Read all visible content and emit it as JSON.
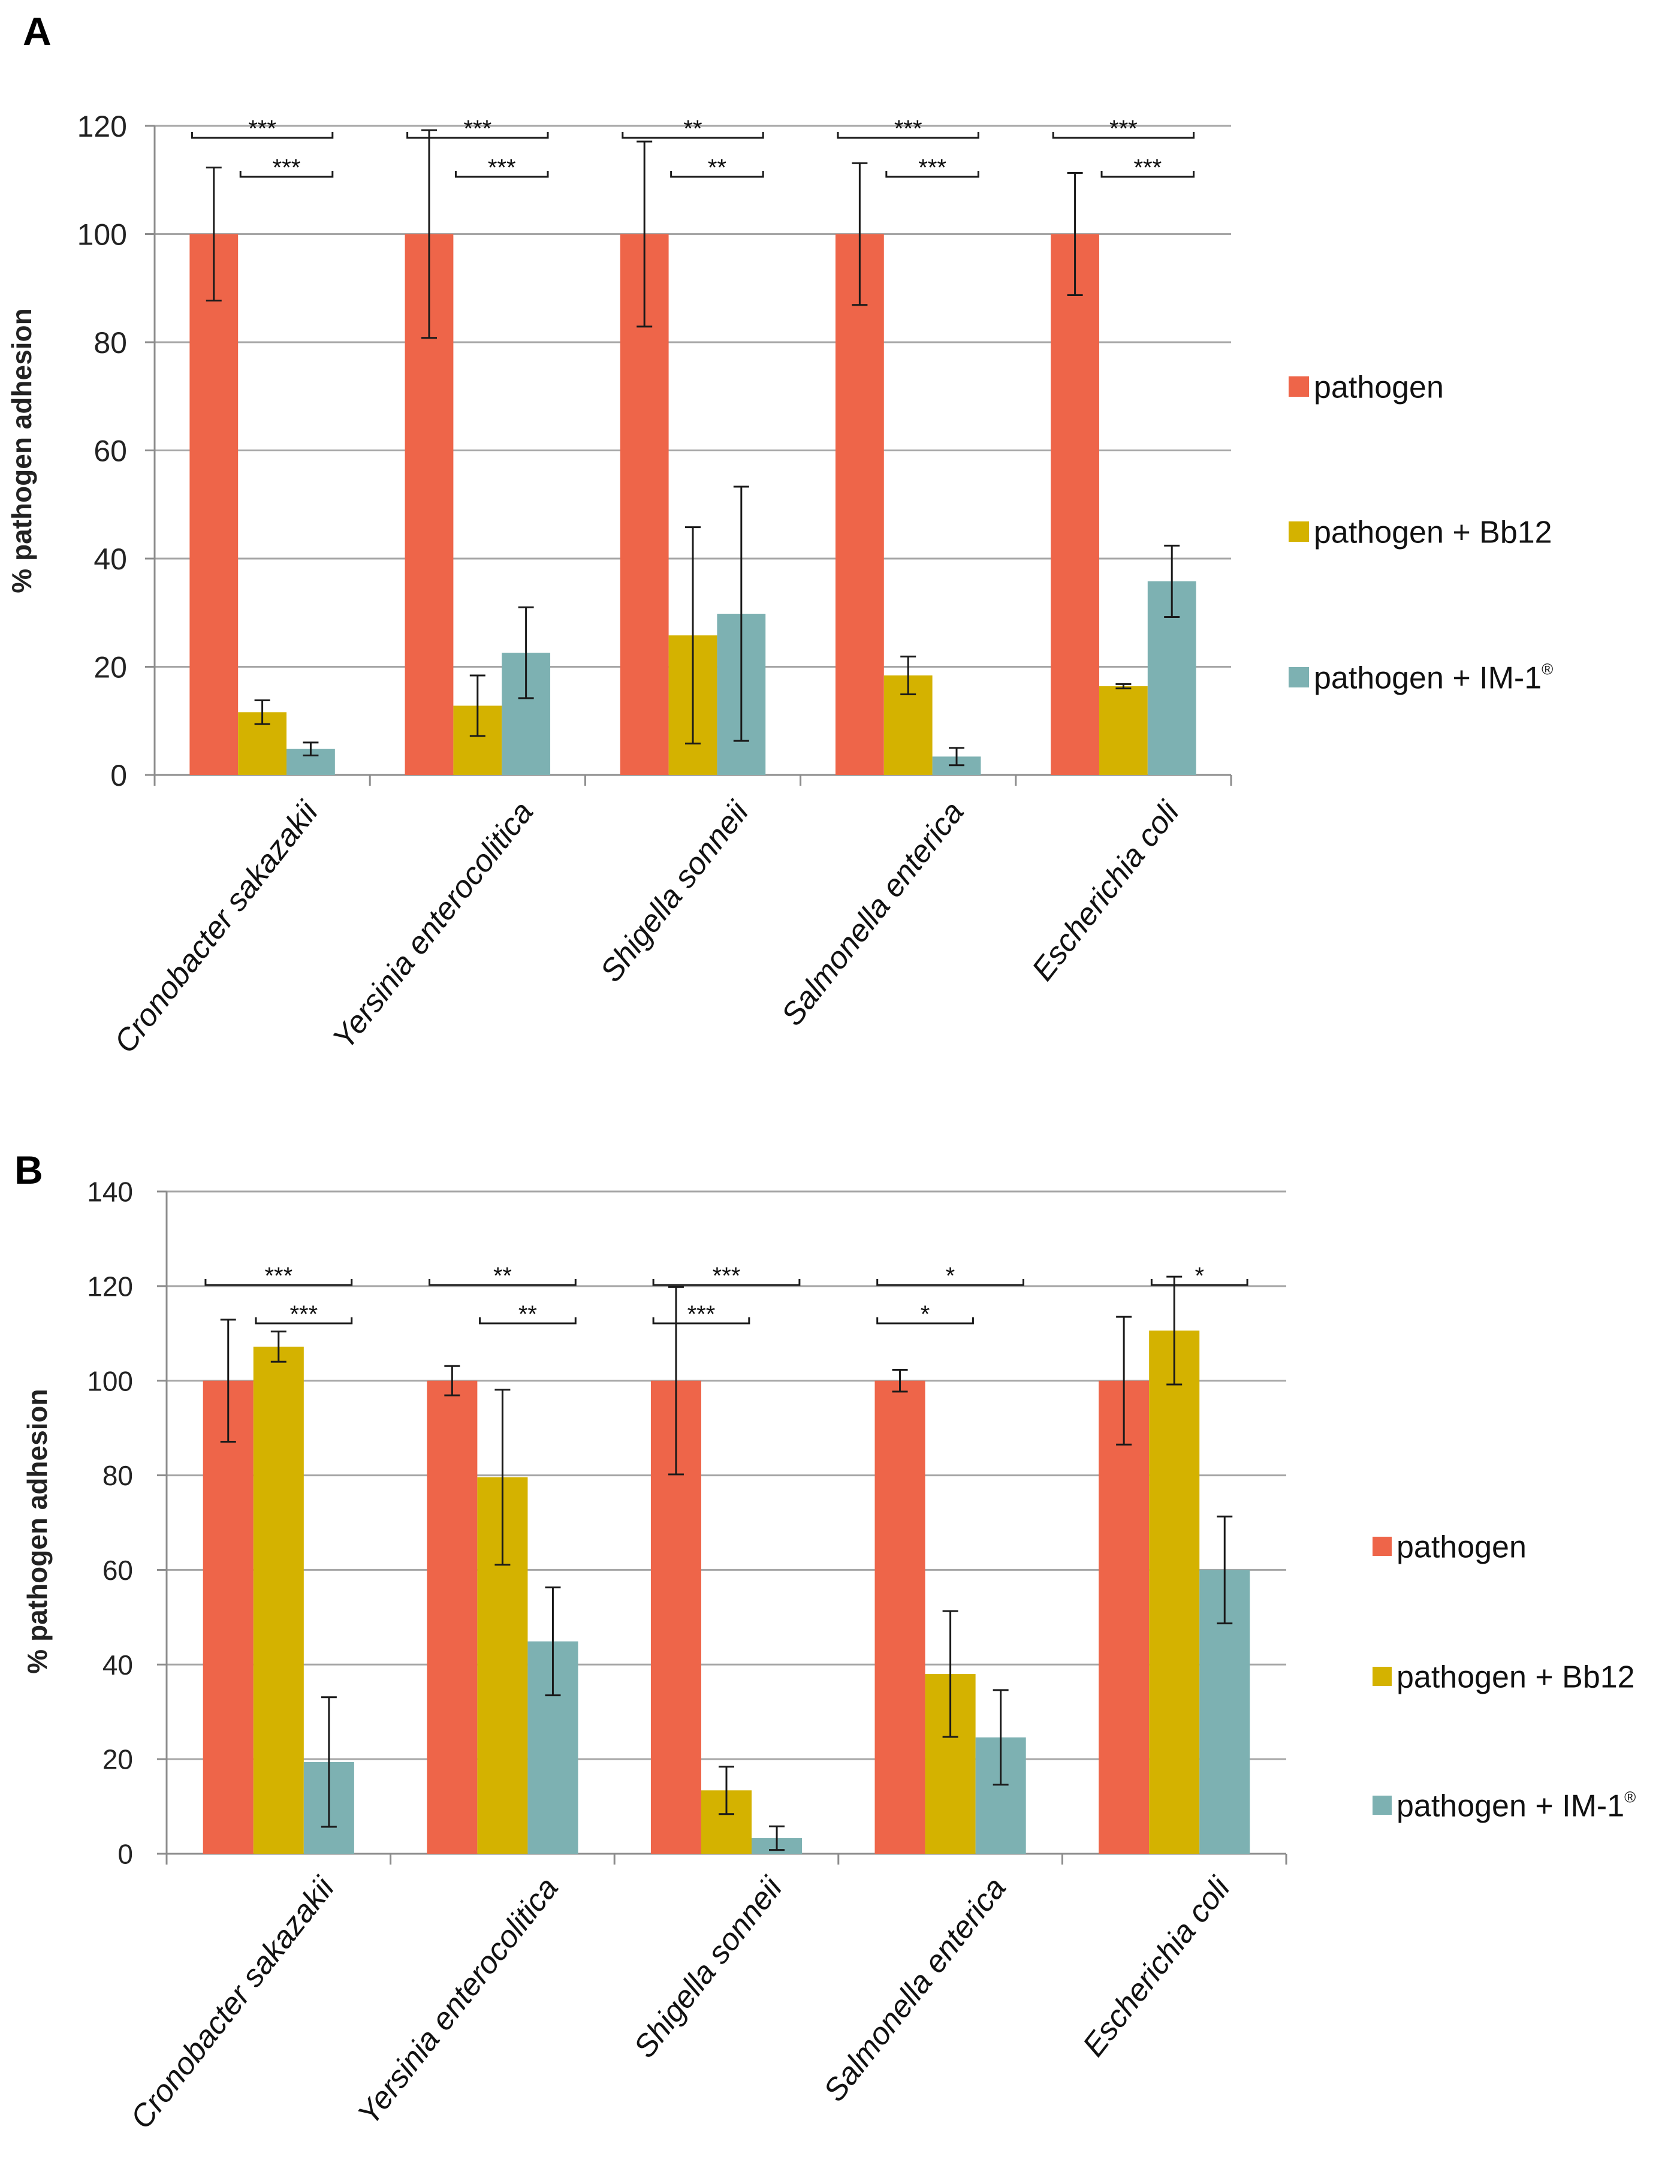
{
  "colors": {
    "pathogen": "#EE6549",
    "bb12": "#D4B200",
    "im1": "#7DB1B2",
    "grid": "#A6A6A6",
    "axis": "#8C8C8C",
    "error": "#1A1A1A"
  },
  "chart_data": [
    {
      "panel": "A",
      "type": "bar",
      "ylabel": "% pathogen adhesion",
      "ylim": [
        0,
        120
      ],
      "yticks": [
        0,
        20,
        40,
        60,
        80,
        100,
        120
      ],
      "categories": [
        "Cronobacter sakazakii",
        "Yersinia enterocolitica",
        "Shigella sonneii",
        "Salmonella enterica",
        "Escherichia coli"
      ],
      "series": [
        {
          "name": "pathogen",
          "color_key": "pathogen",
          "values": [
            100,
            100,
            100,
            100,
            100
          ],
          "errors": [
            12.3,
            19.2,
            17.1,
            13.1,
            11.3
          ]
        },
        {
          "name": "pathogen + Bb12",
          "color_key": "bb12",
          "values": [
            11.6,
            12.8,
            25.8,
            18.4,
            16.4
          ],
          "errors": [
            2.2,
            5.6,
            20,
            3.5,
            0.4
          ]
        },
        {
          "name": "pathogen + IM-1",
          "color_key": "im1",
          "values": [
            4.8,
            22.6,
            29.8,
            3.4,
            35.8
          ],
          "errors": [
            1.2,
            8.4,
            23.5,
            1.6,
            6.6
          ]
        }
      ],
      "legend": {
        "placement": "right",
        "entries": [
          "pathogen",
          "pathogen + Bb12",
          "pathogen + IM-1"
        ],
        "im1_superscript": "®"
      },
      "significance": [
        {
          "category": 0,
          "from": 1,
          "to": 2,
          "level": 1,
          "label": "***"
        },
        {
          "category": 0,
          "from": 0,
          "to": 2,
          "level": 2,
          "label": "***"
        },
        {
          "category": 1,
          "from": 1,
          "to": 2,
          "level": 1,
          "label": "***"
        },
        {
          "category": 1,
          "from": 0,
          "to": 2,
          "level": 2,
          "label": "***"
        },
        {
          "category": 2,
          "from": 1,
          "to": 2,
          "level": 1,
          "label": "**"
        },
        {
          "category": 2,
          "from": 0,
          "to": 2,
          "level": 2,
          "label": "**"
        },
        {
          "category": 3,
          "from": 1,
          "to": 2,
          "level": 1,
          "label": "***"
        },
        {
          "category": 3,
          "from": 0,
          "to": 2,
          "level": 2,
          "label": "***"
        },
        {
          "category": 4,
          "from": 1,
          "to": 2,
          "level": 1,
          "label": "***"
        },
        {
          "category": 4,
          "from": 0,
          "to": 2,
          "level": 2,
          "label": "***"
        }
      ]
    },
    {
      "panel": "B",
      "type": "bar",
      "ylabel": "% pathogen adhesion",
      "ylim": [
        0,
        140
      ],
      "yticks": [
        0,
        20,
        40,
        60,
        80,
        100,
        120,
        140
      ],
      "categories": [
        "Cronobacter sakazakii",
        "Yersinia enterocolitica",
        "Shigella sonneii",
        "Salmonella enterica",
        "Escherichia coli"
      ],
      "series": [
        {
          "name": "pathogen",
          "color_key": "pathogen",
          "values": [
            100,
            100,
            100,
            100,
            100
          ],
          "errors": [
            12.9,
            3.1,
            19.8,
            2.3,
            13.5
          ]
        },
        {
          "name": "pathogen + Bb12",
          "color_key": "bb12",
          "values": [
            107.2,
            79.6,
            13.4,
            38,
            110.6
          ],
          "errors": [
            3.2,
            18.5,
            5,
            13.3,
            11.4
          ]
        },
        {
          "name": "pathogen + IM-1",
          "color_key": "im1",
          "values": [
            19.4,
            44.9,
            3.3,
            24.6,
            60
          ],
          "errors": [
            13.7,
            11.4,
            2.5,
            10,
            11.3
          ]
        }
      ],
      "legend": {
        "placement": "right",
        "entries": [
          "pathogen",
          "pathogen + Bb12",
          "pathogen + IM-1"
        ],
        "im1_superscript": "®"
      },
      "significance": [
        {
          "category": 0,
          "from": 1,
          "to": 2,
          "level": 1,
          "label": "***"
        },
        {
          "category": 0,
          "from": 0,
          "to": 2,
          "level": 2,
          "label": "***"
        },
        {
          "category": 1,
          "from": 1,
          "to": 2,
          "level": 1,
          "label": "**"
        },
        {
          "category": 1,
          "from": 0,
          "to": 2,
          "level": 2,
          "label": "**"
        },
        {
          "category": 2,
          "from": 0,
          "to": 1,
          "level": 1,
          "label": "***"
        },
        {
          "category": 2,
          "from": 0,
          "to": 2,
          "level": 2,
          "label": "***"
        },
        {
          "category": 3,
          "from": 0,
          "to": 1,
          "level": 1,
          "label": "*"
        },
        {
          "category": 3,
          "from": 0,
          "to": 2,
          "level": 2,
          "label": "*"
        },
        {
          "category": 4,
          "from": 1,
          "to": 2,
          "level": 2,
          "label": "*"
        }
      ]
    }
  ]
}
